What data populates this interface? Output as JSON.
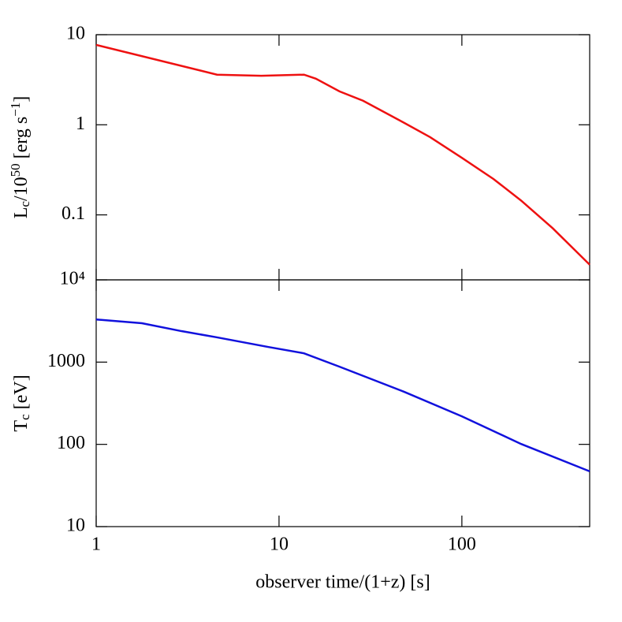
{
  "chart_data": [
    {
      "type": "line",
      "xscale": "log",
      "yscale": "log",
      "ylabel_parts": [
        {
          "text": "L"
        },
        {
          "text": "c",
          "style": "sub"
        },
        {
          "text": "/10"
        },
        {
          "text": "50",
          "style": "sup"
        },
        {
          "text": " [erg s"
        },
        {
          "text": "−1",
          "style": "sup"
        },
        {
          "text": "]"
        }
      ],
      "x": [
        1,
        4.58,
        8,
        13.7,
        15.9,
        21.4,
        28.8,
        48.4,
        67,
        100,
        149,
        211,
        314,
        500
      ],
      "series": [
        {
          "color": "#ee1111",
          "values": [
            7.7,
            3.6,
            3.5,
            3.6,
            3.25,
            2.35,
            1.85,
            1.05,
            0.73,
            0.43,
            0.25,
            0.144,
            0.071,
            0.028
          ]
        }
      ],
      "xlim": [
        1,
        500
      ],
      "xticks": [
        1,
        10,
        100
      ],
      "show_xtick_labels": false,
      "ylim": [
        0.019,
        10
      ],
      "yticks": [
        0.1,
        1,
        10
      ]
    },
    {
      "type": "line",
      "xscale": "log",
      "yscale": "log",
      "xlabel": "observer time/(1+z) [s]",
      "ylabel_parts": [
        {
          "text": "T"
        },
        {
          "text": "c",
          "style": "sub"
        },
        {
          "text": " [eV]"
        }
      ],
      "x": [
        1,
        1.78,
        2.93,
        4.58,
        8.7,
        13.7,
        21.4,
        48.4,
        100,
        211,
        500
      ],
      "series": [
        {
          "color": "#1111dd",
          "values": [
            3300,
            2970,
            2380,
            2000,
            1530,
            1280,
            880,
            435,
            219,
            101,
            47
          ]
        }
      ],
      "xlim": [
        1,
        500
      ],
      "xticks": [
        1,
        10,
        100
      ],
      "show_xtick_labels": true,
      "ylim": [
        10,
        10000
      ],
      "yticks": [
        10,
        100,
        1000,
        {
          "value": 10000,
          "label": "10⁴"
        }
      ]
    }
  ]
}
